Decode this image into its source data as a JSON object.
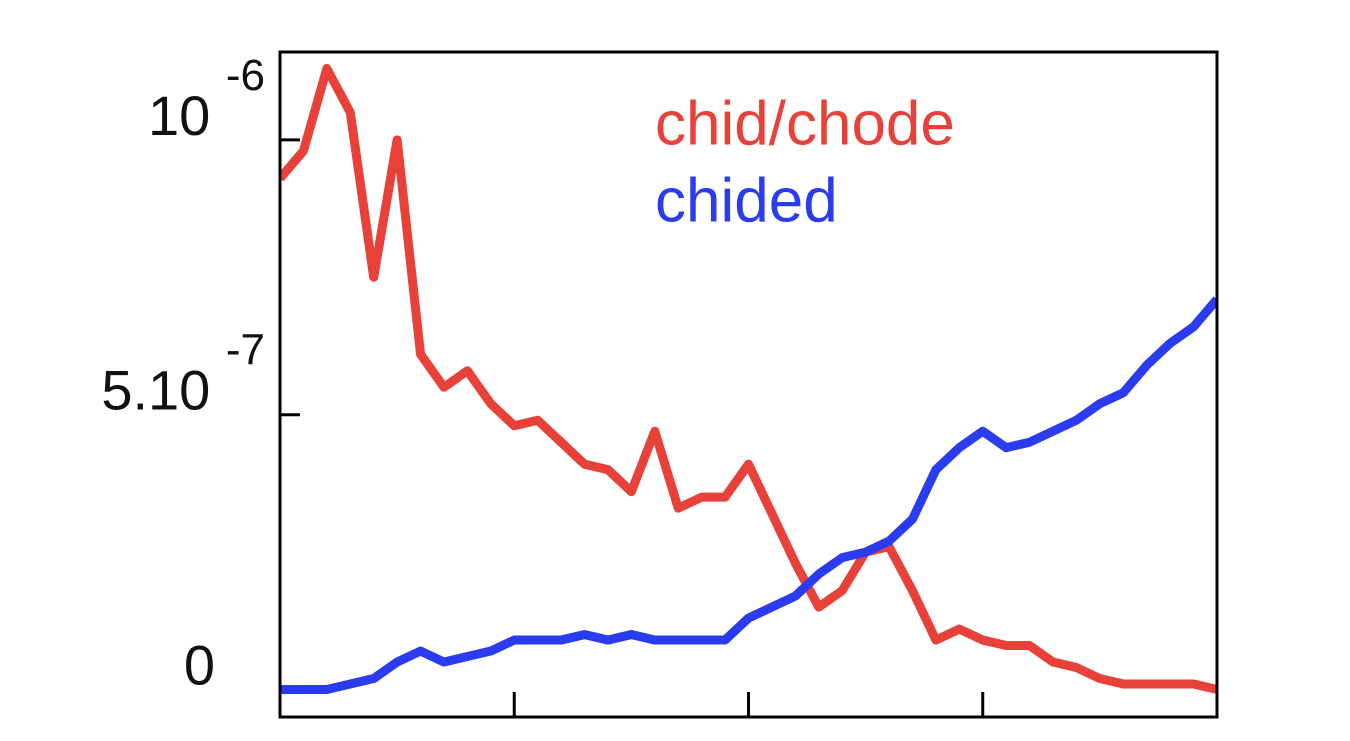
{
  "chart_data": {
    "type": "line",
    "x": [
      0,
      1,
      2,
      3,
      4,
      5,
      6,
      7,
      8,
      9,
      10,
      11,
      12,
      13,
      14,
      15,
      16,
      17,
      18,
      19,
      20,
      21,
      22,
      23,
      24,
      25,
      26,
      27,
      28,
      29,
      30,
      31,
      32,
      33,
      34,
      35,
      36,
      37,
      38,
      39,
      40
    ],
    "xlim": [
      0,
      40
    ],
    "xticks": [
      10,
      20,
      30
    ],
    "ylim": [
      -5e-08,
      1.16e-06
    ],
    "yticks": [
      {
        "value": 0,
        "label": "0"
      },
      {
        "value": 5e-07,
        "label": "5.10 -7"
      },
      {
        "value": 1e-06,
        "label": "10 -6"
      }
    ],
    "legend": "upper right",
    "series": [
      {
        "name": "chid/chode",
        "color": "#e8413a",
        "values": [
          9.3e-07,
          9.8e-07,
          1.13e-06,
          1.05e-06,
          7.5e-07,
          1e-06,
          6.1e-07,
          5.5e-07,
          5.8e-07,
          5.2e-07,
          4.8e-07,
          4.9e-07,
          4.5e-07,
          4.1e-07,
          4e-07,
          3.6e-07,
          4.7e-07,
          3.3e-07,
          3.5e-07,
          3.5e-07,
          4.1e-07,
          3.2e-07,
          2.3e-07,
          1.5e-07,
          1.8e-07,
          2.5e-07,
          2.6e-07,
          1.8e-07,
          9e-08,
          1.1e-07,
          9e-08,
          8e-08,
          8e-08,
          5e-08,
          4e-08,
          2e-08,
          1e-08,
          1e-08,
          1e-08,
          1e-08,
          0
        ]
      },
      {
        "name": "chided",
        "color": "#2b3bef",
        "values": [
          0,
          0,
          0,
          1e-08,
          2e-08,
          5e-08,
          7e-08,
          5e-08,
          6e-08,
          7e-08,
          9e-08,
          9e-08,
          9e-08,
          1e-07,
          9e-08,
          1e-07,
          9e-08,
          9e-08,
          9e-08,
          9e-08,
          1.3e-07,
          1.5e-07,
          1.7e-07,
          2.1e-07,
          2.4e-07,
          2.5e-07,
          2.7e-07,
          3.1e-07,
          4e-07,
          4.4e-07,
          4.7e-07,
          4.4e-07,
          4.5e-07,
          4.7e-07,
          4.9e-07,
          5.2e-07,
          5.4e-07,
          5.9e-07,
          6.3e-07,
          6.6e-07,
          7.1e-07
        ]
      }
    ]
  }
}
